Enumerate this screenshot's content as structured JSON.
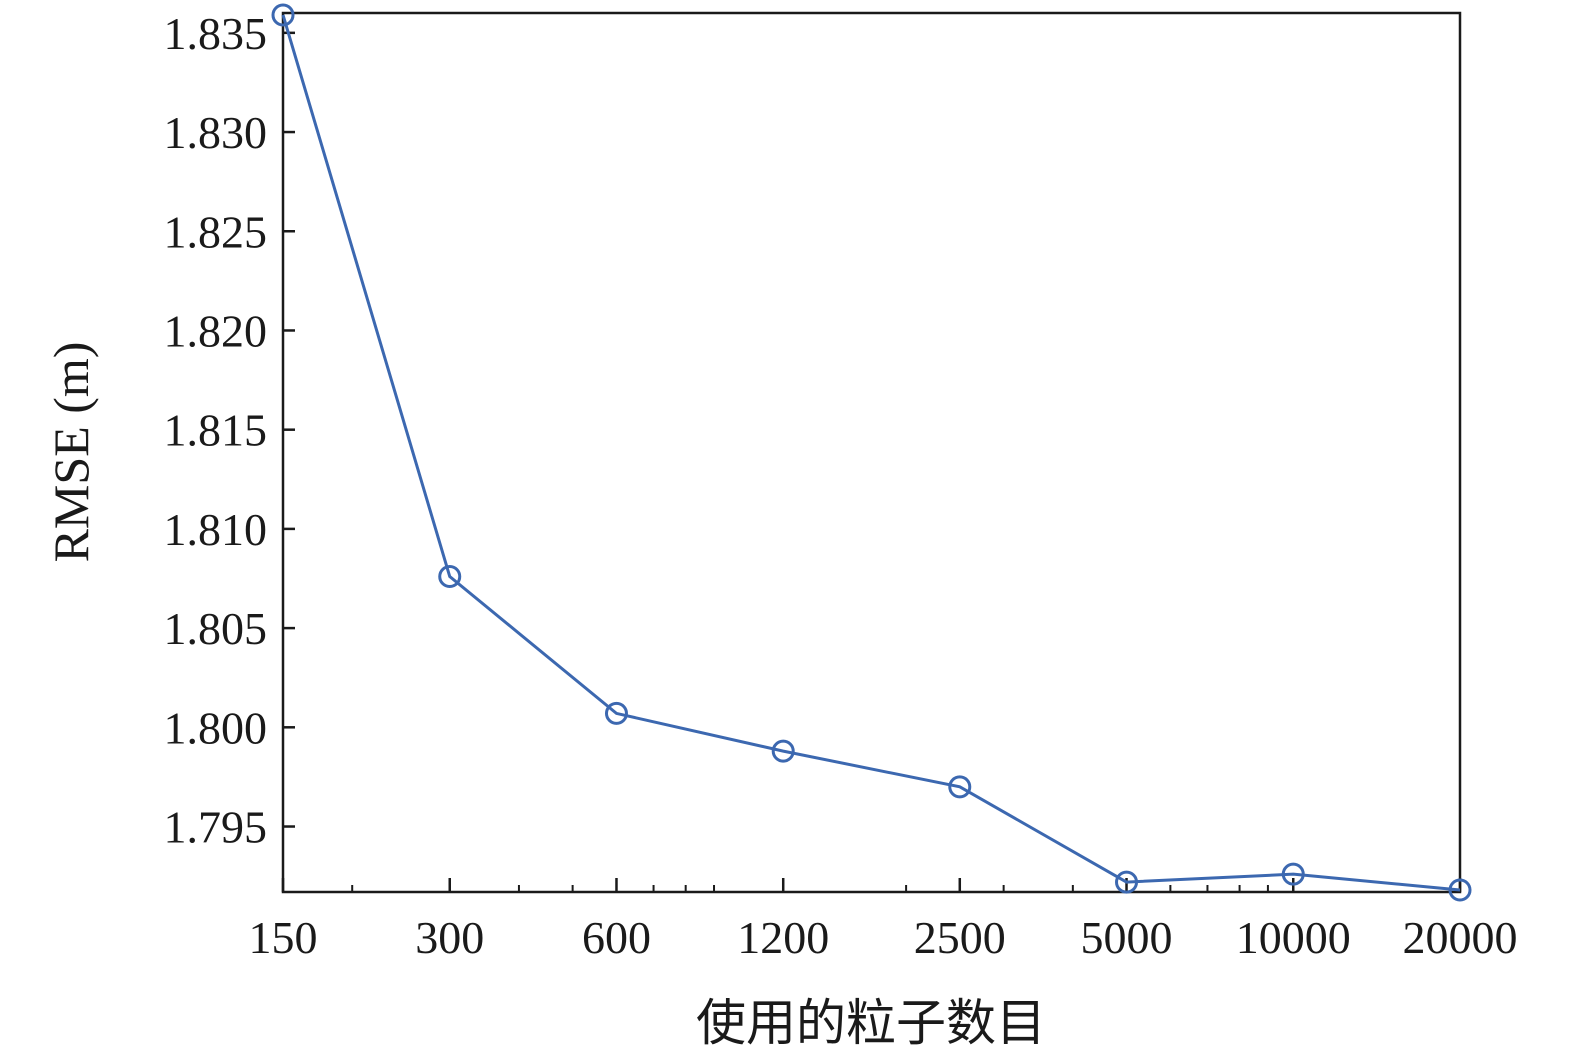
{
  "chart_data": {
    "type": "line",
    "title": "",
    "xlabel": "使用的粒子数目",
    "ylabel": "RMSE (m)",
    "x_scale": "log2",
    "categories": [
      "150",
      "300",
      "600",
      "1200",
      "2500",
      "5000",
      "10000",
      "20000"
    ],
    "series": [
      {
        "color": "#3c68b0",
        "marker": "circle",
        "values": [
          1.8359,
          1.8076,
          1.8007,
          1.7988,
          1.797,
          1.7922,
          1.7926,
          1.7918
        ]
      }
    ],
    "ylim": [
      1.7917,
      1.836
    ],
    "yticks": [
      1.795,
      1.8,
      1.805,
      1.81,
      1.815,
      1.82,
      1.825,
      1.83,
      1.835
    ],
    "ytick_labels": [
      "1.795",
      "1.800",
      "1.805",
      "1.810",
      "1.815",
      "1.820",
      "1.825",
      "1.830",
      "1.835"
    ],
    "grid": false,
    "legend": "none",
    "colors": {
      "line": "#3c68b0",
      "axis": "#1a1a1a"
    }
  }
}
